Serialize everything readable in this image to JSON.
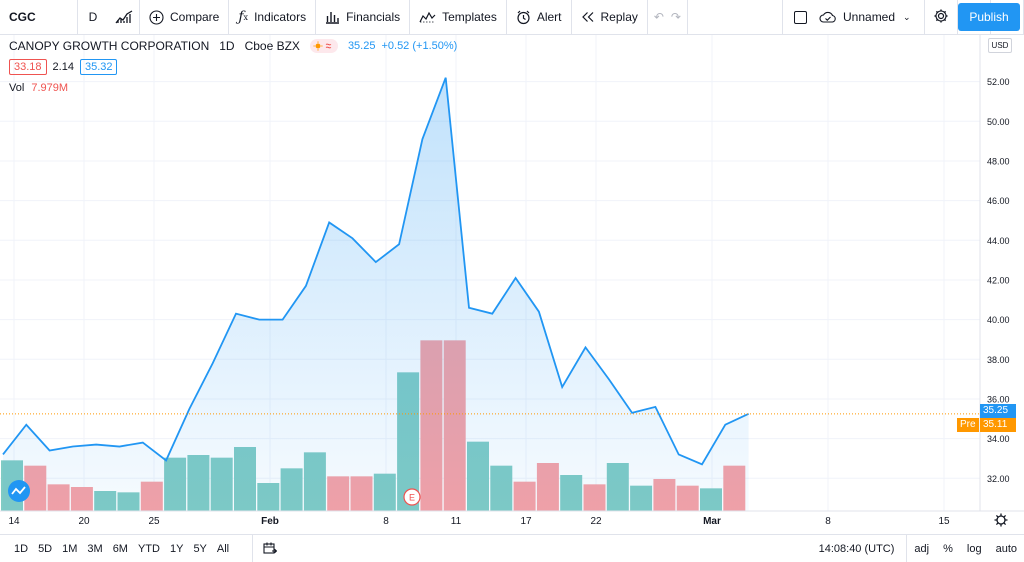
{
  "toolbar": {
    "symbol": "CGC",
    "interval": "D",
    "compare": "Compare",
    "indicators": "Indicators",
    "financials": "Financials",
    "templates": "Templates",
    "alert": "Alert",
    "replay": "Replay",
    "layout_name": "Unnamed",
    "publish": "Publish"
  },
  "legend": {
    "title": "CANOPY GROWTH CORPORATION",
    "interval": "1D",
    "exchange": "Cboe BZX",
    "last": "35.25",
    "change": "+0.52 (+1.50%)",
    "bid": "33.18",
    "spread": "2.14",
    "ask": "35.32",
    "vol_label": "Vol",
    "vol_value": "7.979M"
  },
  "currency": "USD",
  "price_tags": {
    "last": "35.25",
    "pre_label": "Pre",
    "pre": "35.11"
  },
  "colors": {
    "line": "#2196f3",
    "area": "#2196f3",
    "vol_up": "#80cbc4",
    "vol_down": "#f7a1a5",
    "last_tag": "#2196f3",
    "pre_tag": "#ff9800"
  },
  "earnings_marker": "E",
  "bottom": {
    "ranges": [
      "1D",
      "5D",
      "1M",
      "3M",
      "6M",
      "YTD",
      "1Y",
      "5Y",
      "All"
    ],
    "time": "14:08:40 (UTC)",
    "adj": "adj",
    "pct": "%",
    "log": "log",
    "auto": "auto"
  },
  "chart_data": {
    "type": "area",
    "x": [
      "Jan 13",
      "Jan 14",
      "Jan 15",
      "Jan 19",
      "Jan 20",
      "Jan 21",
      "Jan 22",
      "Jan 25",
      "Jan 26",
      "Jan 27",
      "Jan 28",
      "Jan 29",
      "Feb 1",
      "Feb 2",
      "Feb 3",
      "Feb 4",
      "Feb 5",
      "Feb 8",
      "Feb 9",
      "Feb 10",
      "Feb 11",
      "Feb 12",
      "Feb 16",
      "Feb 17",
      "Feb 18",
      "Feb 19",
      "Feb 22",
      "Feb 23",
      "Feb 24",
      "Feb 25",
      "Feb 26",
      "Mar 1",
      "Mar 2"
    ],
    "series": [
      {
        "values": [
          33.2,
          34.7,
          33.4,
          33.6,
          33.7,
          33.6,
          33.8,
          32.9,
          35.5,
          37.8,
          40.3,
          40.0,
          40.0,
          41.7,
          44.9,
          44.1,
          42.9,
          43.8,
          49.1,
          52.2,
          40.6,
          40.3,
          42.1,
          40.4,
          36.6,
          38.6,
          37.0,
          35.3,
          35.6,
          33.2,
          32.7,
          34.7,
          35.25
        ]
      }
    ],
    "volume": [
      {
        "up": true,
        "v": 1.9
      },
      {
        "up": false,
        "v": 1.7
      },
      {
        "up": false,
        "v": 1.0
      },
      {
        "up": false,
        "v": 0.9
      },
      {
        "up": true,
        "v": 0.75
      },
      {
        "up": true,
        "v": 0.7
      },
      {
        "up": false,
        "v": 1.1
      },
      {
        "up": true,
        "v": 2.0
      },
      {
        "up": true,
        "v": 2.1
      },
      {
        "up": true,
        "v": 2.0
      },
      {
        "up": true,
        "v": 2.4
      },
      {
        "up": true,
        "v": 1.05
      },
      {
        "up": true,
        "v": 1.6
      },
      {
        "up": true,
        "v": 2.2
      },
      {
        "up": false,
        "v": 1.3
      },
      {
        "up": false,
        "v": 1.3
      },
      {
        "up": true,
        "v": 1.4
      },
      {
        "up": true,
        "v": 5.2
      },
      {
        "up": false,
        "v": 6.4
      },
      {
        "up": false,
        "v": 6.4
      },
      {
        "up": true,
        "v": 2.6
      },
      {
        "up": true,
        "v": 1.7
      },
      {
        "up": false,
        "v": 1.1
      },
      {
        "up": false,
        "v": 1.8
      },
      {
        "up": true,
        "v": 1.35
      },
      {
        "up": false,
        "v": 1.0
      },
      {
        "up": true,
        "v": 1.8
      },
      {
        "up": true,
        "v": 0.95
      },
      {
        "up": false,
        "v": 1.2
      },
      {
        "up": false,
        "v": 0.95
      },
      {
        "up": true,
        "v": 0.85
      },
      {
        "up": false,
        "v": 1.7
      }
    ],
    "xticks": [
      "14",
      "20",
      "25",
      "Feb",
      "8",
      "11",
      "17",
      "22",
      "Mar",
      "8",
      "15"
    ],
    "yticks": [
      "32.00",
      "34.00",
      "36.00",
      "38.00",
      "40.00",
      "42.00",
      "44.00",
      "46.00",
      "48.00",
      "50.00",
      "52.00"
    ],
    "ylim": [
      30.4,
      54.1
    ],
    "grid": true
  }
}
